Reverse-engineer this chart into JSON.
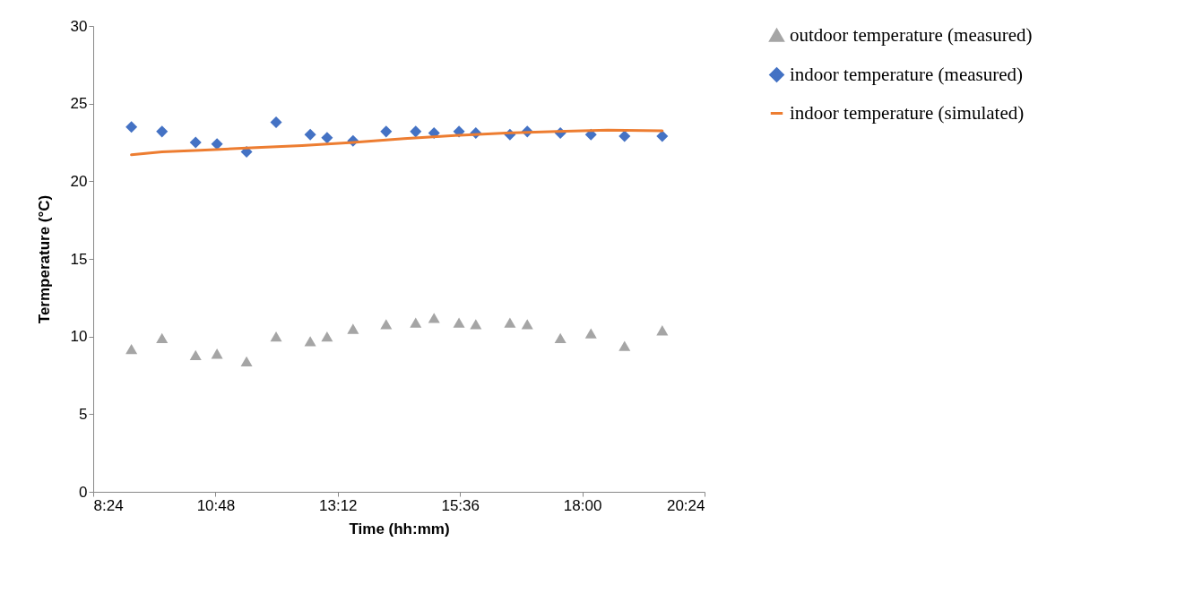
{
  "chart_data": {
    "type": "scatter",
    "xlabel": "Time (hh:mm)",
    "ylabel": "Termperature (°C)",
    "xlim": [
      8.4,
      20.4
    ],
    "xticks": [
      {
        "value": 8.4,
        "label": "8:24"
      },
      {
        "value": 10.8,
        "label": "10:48"
      },
      {
        "value": 13.2,
        "label": "13:12"
      },
      {
        "value": 15.6,
        "label": "15:36"
      },
      {
        "value": 18.0,
        "label": "18:00"
      },
      {
        "value": 20.4,
        "label": "20:24"
      }
    ],
    "ylim": [
      0,
      30
    ],
    "yticks": [
      0,
      5,
      10,
      15,
      20,
      25,
      30
    ],
    "grid": false,
    "legend": "right",
    "x": [
      9.15,
      9.75,
      10.41,
      10.83,
      11.41,
      11.99,
      12.66,
      12.99,
      13.5,
      14.15,
      14.73,
      15.09,
      15.58,
      15.91,
      16.58,
      16.92,
      17.57,
      18.17,
      18.83,
      19.57
    ],
    "series": [
      {
        "name": "outdoor temperature (measured)",
        "color": "#a5a5a5",
        "marker": "triangle",
        "values": [
          9.2,
          9.9,
          8.8,
          8.9,
          8.4,
          10.0,
          9.7,
          10.0,
          10.5,
          10.8,
          10.9,
          11.2,
          10.9,
          10.8,
          10.9,
          10.8,
          9.9,
          10.2,
          9.4,
          10.4
        ]
      },
      {
        "name": "indoor temperature (measured)",
        "color": "#4472c4",
        "marker": "diamond",
        "values": [
          23.5,
          23.2,
          22.5,
          22.4,
          21.9,
          23.8,
          23.0,
          22.8,
          22.6,
          23.2,
          23.2,
          23.1,
          23.2,
          23.1,
          23.0,
          23.2,
          23.1,
          23.0,
          22.9,
          22.9
        ]
      },
      {
        "name": "indoor temperature (simulated)",
        "color": "#ed7d31",
        "type": "line",
        "marker": "none",
        "line_style": "solid",
        "x": [
          9.15,
          9.75,
          10.5,
          11.5,
          12.5,
          13.5,
          14.5,
          15.5,
          16.5,
          17.5,
          18.5,
          19.57
        ],
        "values": [
          21.7,
          21.9,
          22.0,
          22.15,
          22.3,
          22.5,
          22.75,
          22.95,
          23.1,
          23.2,
          23.3,
          23.25
        ]
      }
    ]
  }
}
